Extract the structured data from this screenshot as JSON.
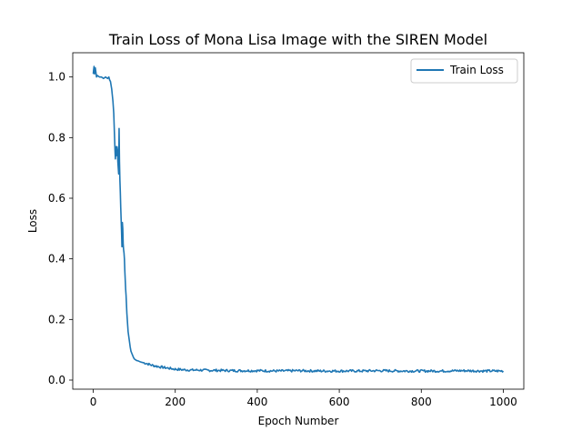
{
  "chart_data": {
    "type": "line",
    "title": "Train Loss of Mona Lisa Image with the SIREN Model",
    "xlabel": "Epoch Number",
    "ylabel": "Loss",
    "xlim": [
      -50,
      1050
    ],
    "ylim": [
      -0.03,
      1.08
    ],
    "x_ticks": [
      0,
      200,
      400,
      600,
      800,
      1000
    ],
    "y_ticks": [
      0.0,
      0.2,
      0.4,
      0.6,
      0.8,
      1.0
    ],
    "x_tick_labels": [
      "0",
      "200",
      "400",
      "600",
      "800",
      "1000"
    ],
    "y_tick_labels": [
      "0.0",
      "0.2",
      "0.4",
      "0.6",
      "0.8",
      "1.0"
    ],
    "grid": false,
    "legend": {
      "position": "top-right",
      "entries": [
        "Train Loss"
      ]
    },
    "series": [
      {
        "name": "Train Loss",
        "color": "#1f77b4",
        "x": [
          0,
          1,
          2,
          3,
          5,
          8,
          10,
          15,
          20,
          25,
          30,
          35,
          38,
          40,
          42,
          45,
          48,
          50,
          52,
          53,
          54,
          55,
          56,
          57,
          58,
          59,
          60,
          61,
          62,
          63,
          64,
          65,
          66,
          67,
          68,
          69,
          70,
          71,
          72,
          73,
          74,
          75,
          76,
          77,
          78,
          79,
          80,
          81,
          82,
          83,
          84,
          85,
          86,
          88,
          90,
          92,
          95,
          98,
          100,
          105,
          110,
          115,
          120,
          130,
          140,
          150,
          160,
          170,
          180,
          190,
          200,
          220,
          240,
          260,
          280,
          300,
          350,
          400,
          450,
          500,
          550,
          600,
          650,
          700,
          750,
          800,
          850,
          900,
          950,
          1000
        ],
        "y": [
          1.01,
          1.025,
          1.035,
          1.01,
          1.03,
          1.0,
          1.005,
          1.0,
          1.0,
          0.995,
          1.0,
          0.995,
          1.0,
          0.99,
          0.985,
          0.96,
          0.92,
          0.88,
          0.8,
          0.76,
          0.73,
          0.77,
          0.74,
          0.76,
          0.77,
          0.76,
          0.72,
          0.7,
          0.68,
          0.83,
          0.72,
          0.66,
          0.62,
          0.57,
          0.53,
          0.49,
          0.44,
          0.52,
          0.5,
          0.45,
          0.43,
          0.42,
          0.4,
          0.36,
          0.33,
          0.3,
          0.28,
          0.25,
          0.22,
          0.2,
          0.18,
          0.16,
          0.15,
          0.13,
          0.11,
          0.095,
          0.085,
          0.075,
          0.07,
          0.065,
          0.063,
          0.06,
          0.058,
          0.055,
          0.05,
          0.047,
          0.044,
          0.042,
          0.04,
          0.038,
          0.036,
          0.034,
          0.033,
          0.033,
          0.032,
          0.032,
          0.031,
          0.031,
          0.03,
          0.031,
          0.03,
          0.03,
          0.03,
          0.031,
          0.03,
          0.03,
          0.03,
          0.031,
          0.03,
          0.03
        ]
      }
    ]
  }
}
